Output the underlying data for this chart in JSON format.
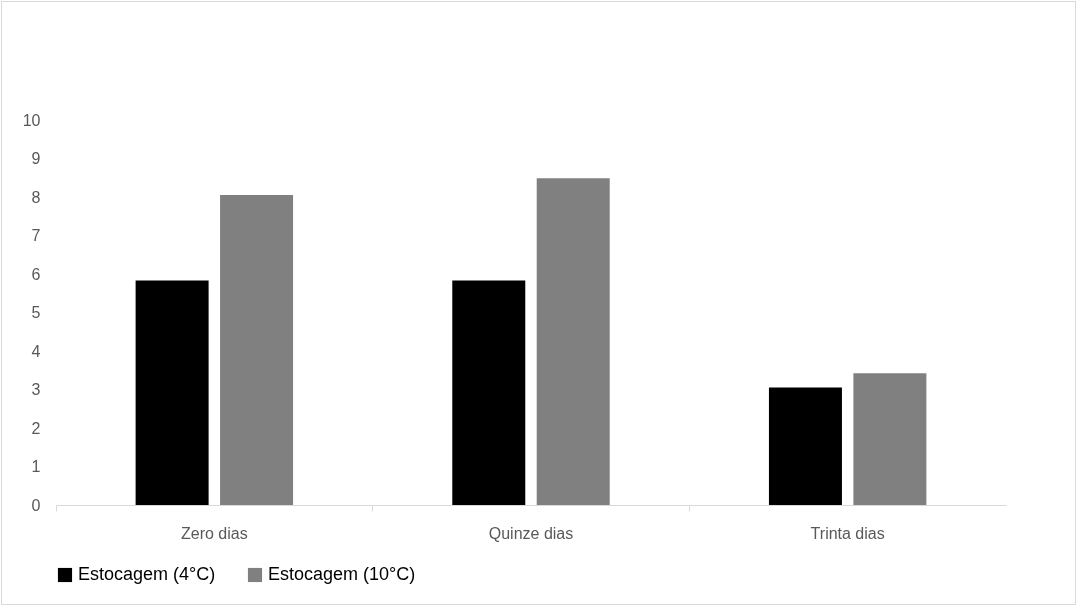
{
  "chart_data": {
    "type": "bar",
    "categories": [
      "Zero dias",
      "Quinze dias",
      "Trinta dias"
    ],
    "series": [
      {
        "name": "Estocagem (4°C)",
        "color": "#000000",
        "values": [
          5.83,
          5.83,
          3.05
        ]
      },
      {
        "name": "Estocagem (10°C)",
        "color": "#808080",
        "values": [
          8.05,
          8.49,
          3.42
        ]
      }
    ],
    "ylim": [
      0,
      10
    ],
    "yticks": [
      0,
      1,
      2,
      3,
      4,
      5,
      6,
      7,
      8,
      9,
      10
    ],
    "grid": false,
    "legend": "bottom"
  }
}
